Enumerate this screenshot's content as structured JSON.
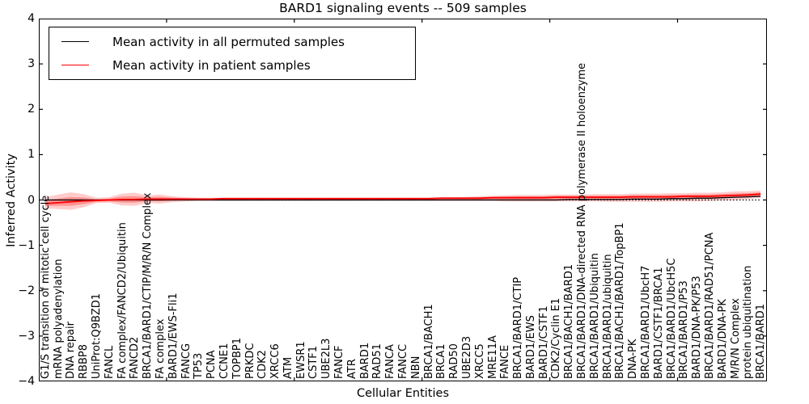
{
  "title": "BARD1 signaling events -- 509 samples",
  "axes": {
    "ylabel": "Inferred Activity",
    "xlabel": "Cellular Entities",
    "yticks": [
      "4",
      "3",
      "2",
      "1",
      "0",
      "−1",
      "−2",
      "−3",
      "−4"
    ],
    "ytick_values": [
      4,
      3,
      2,
      1,
      0,
      -1,
      -2,
      -3,
      -4
    ],
    "xtick_positions": [
      0,
      10,
      20,
      30,
      40,
      50
    ],
    "ylim": [
      -4,
      4
    ]
  },
  "legend": {
    "entries": [
      {
        "label": "Mean activity in all permuted samples",
        "color": "#000000"
      },
      {
        "label": "Mean activity in patient samples",
        "color": "#ff0000"
      }
    ]
  },
  "chart_data": {
    "type": "line",
    "title": "BARD1 signaling events -- 509 samples",
    "xlabel": "Cellular Entities",
    "ylabel": "Inferred Activity",
    "ylim": [
      -4,
      4
    ],
    "grid": false,
    "legend_position": "upper left",
    "zero_line": {
      "style": "dotted",
      "color": "#000000",
      "y": 0
    },
    "categories": [
      "G1/S transition of mitotic cell cycle",
      "mRNA polyadenylation",
      "DNA repair",
      "RBBP8",
      "UniProt:Q9BZD1",
      "FANCL",
      "FA complex/FANCD2/Ubiquitin",
      "FANCD2",
      "BRCA1/BARD1/CTIP/M/R/N Complex",
      "FA complex",
      "BARD1/EWS-Fli1",
      "FANCG",
      "TP53",
      "PCNA",
      "CCNE1",
      "TOPBP1",
      "PRKDC",
      "CDK2",
      "XRCC6",
      "ATM",
      "EWSR1",
      "CSTF1",
      "UBE2L3",
      "FANCF",
      "ATR",
      "BARD1",
      "RAD51",
      "FANCA",
      "FANCC",
      "NBN",
      "BRCA1/BACH1",
      "BRCA1",
      "RAD50",
      "UBE2D3",
      "XRCC5",
      "MRE11A",
      "FANCE",
      "BRCA1/BARD1/CTIP",
      "BARD1/EWS",
      "BARD1/CSTF1",
      "CDK2/Cyclin E1",
      "BRCA1/BACH1/BARD1",
      "BRCA1/BARD1/DNA-directed RNA polymerase II holoenzyme",
      "BRCA1/BARD1/Ubiquitin",
      "BRCA1/BARD1/ubiquitin",
      "BRCA1/BACH1/BARD1/TopBP1",
      "DNA-PK",
      "BRCA1/BARD1/UbcH7",
      "BARD1/CSTF1/BRCA1",
      "BRCA1/BARD1/UbcH5C",
      "BRCA1/BARD1/P53",
      "BARD1/DNA-PK/P53",
      "BRCA1/BARD1/RAD51/PCNA",
      "BARD1/DNA-PK",
      "M/R/N Complex",
      "protein ubiquitination",
      "BRCA1/BARD1"
    ],
    "series": [
      {
        "name": "Mean activity in all permuted samples",
        "color": "#000000",
        "values": [
          0,
          0,
          0,
          0,
          0,
          0,
          0,
          0,
          0,
          0,
          0,
          0,
          0,
          0,
          0,
          0,
          0,
          0,
          0,
          0,
          0,
          0,
          0,
          0,
          0,
          0,
          0,
          0,
          0,
          0,
          0,
          0,
          0,
          0,
          0,
          0,
          0,
          0,
          0,
          0,
          0.0,
          0.01,
          0.01,
          0.01,
          0.01,
          0.01,
          0.02,
          0.02,
          0.02,
          0.03,
          0.03,
          0.04,
          0.04,
          0.05,
          0.06,
          0.07,
          0.08
        ]
      },
      {
        "name": "Mean activity in patient samples",
        "color": "#ff0000",
        "values": [
          -0.08,
          -0.06,
          -0.04,
          -0.02,
          -0.01,
          0.0,
          0.01,
          0.01,
          0.02,
          0.02,
          0.02,
          0.02,
          0.02,
          0.02,
          0.03,
          0.03,
          0.03,
          0.03,
          0.03,
          0.03,
          0.03,
          0.03,
          0.03,
          0.03,
          0.03,
          0.03,
          0.03,
          0.03,
          0.03,
          0.03,
          0.03,
          0.04,
          0.04,
          0.04,
          0.04,
          0.05,
          0.05,
          0.05,
          0.05,
          0.05,
          0.06,
          0.06,
          0.06,
          0.06,
          0.06,
          0.06,
          0.07,
          0.07,
          0.07,
          0.07,
          0.08,
          0.08,
          0.08,
          0.09,
          0.1,
          0.11,
          0.13
        ]
      }
    ],
    "band": {
      "name": "patient activity spread",
      "color": "#ff0000",
      "high": [
        0.06,
        0.12,
        0.17,
        0.13,
        0.05,
        0.06,
        0.14,
        0.16,
        0.1,
        0.12,
        0.08,
        0.06,
        0.05,
        0.05,
        0.05,
        0.05,
        0.05,
        0.05,
        0.05,
        0.05,
        0.05,
        0.05,
        0.05,
        0.05,
        0.05,
        0.05,
        0.05,
        0.05,
        0.05,
        0.05,
        0.05,
        0.06,
        0.06,
        0.07,
        0.08,
        0.09,
        0.1,
        0.11,
        0.11,
        0.11,
        0.12,
        0.12,
        0.12,
        0.13,
        0.13,
        0.13,
        0.14,
        0.14,
        0.14,
        0.15,
        0.15,
        0.16,
        0.16,
        0.17,
        0.19,
        0.19,
        0.21
      ],
      "low": [
        -0.18,
        -0.2,
        -0.22,
        -0.16,
        -0.07,
        -0.06,
        -0.12,
        -0.13,
        -0.07,
        -0.08,
        -0.05,
        -0.03,
        -0.02,
        -0.02,
        -0.02,
        -0.02,
        -0.02,
        -0.02,
        -0.02,
        -0.02,
        -0.02,
        -0.02,
        -0.02,
        -0.02,
        -0.02,
        -0.02,
        -0.02,
        -0.02,
        -0.02,
        -0.02,
        -0.02,
        -0.02,
        -0.02,
        -0.02,
        -0.02,
        -0.02,
        -0.03,
        -0.03,
        -0.03,
        -0.03,
        -0.03,
        -0.03,
        -0.03,
        -0.03,
        -0.04,
        -0.04,
        -0.04,
        -0.04,
        -0.04,
        -0.03,
        -0.03,
        -0.03,
        -0.02,
        -0.01,
        0.0,
        0.02,
        0.05
      ]
    }
  }
}
